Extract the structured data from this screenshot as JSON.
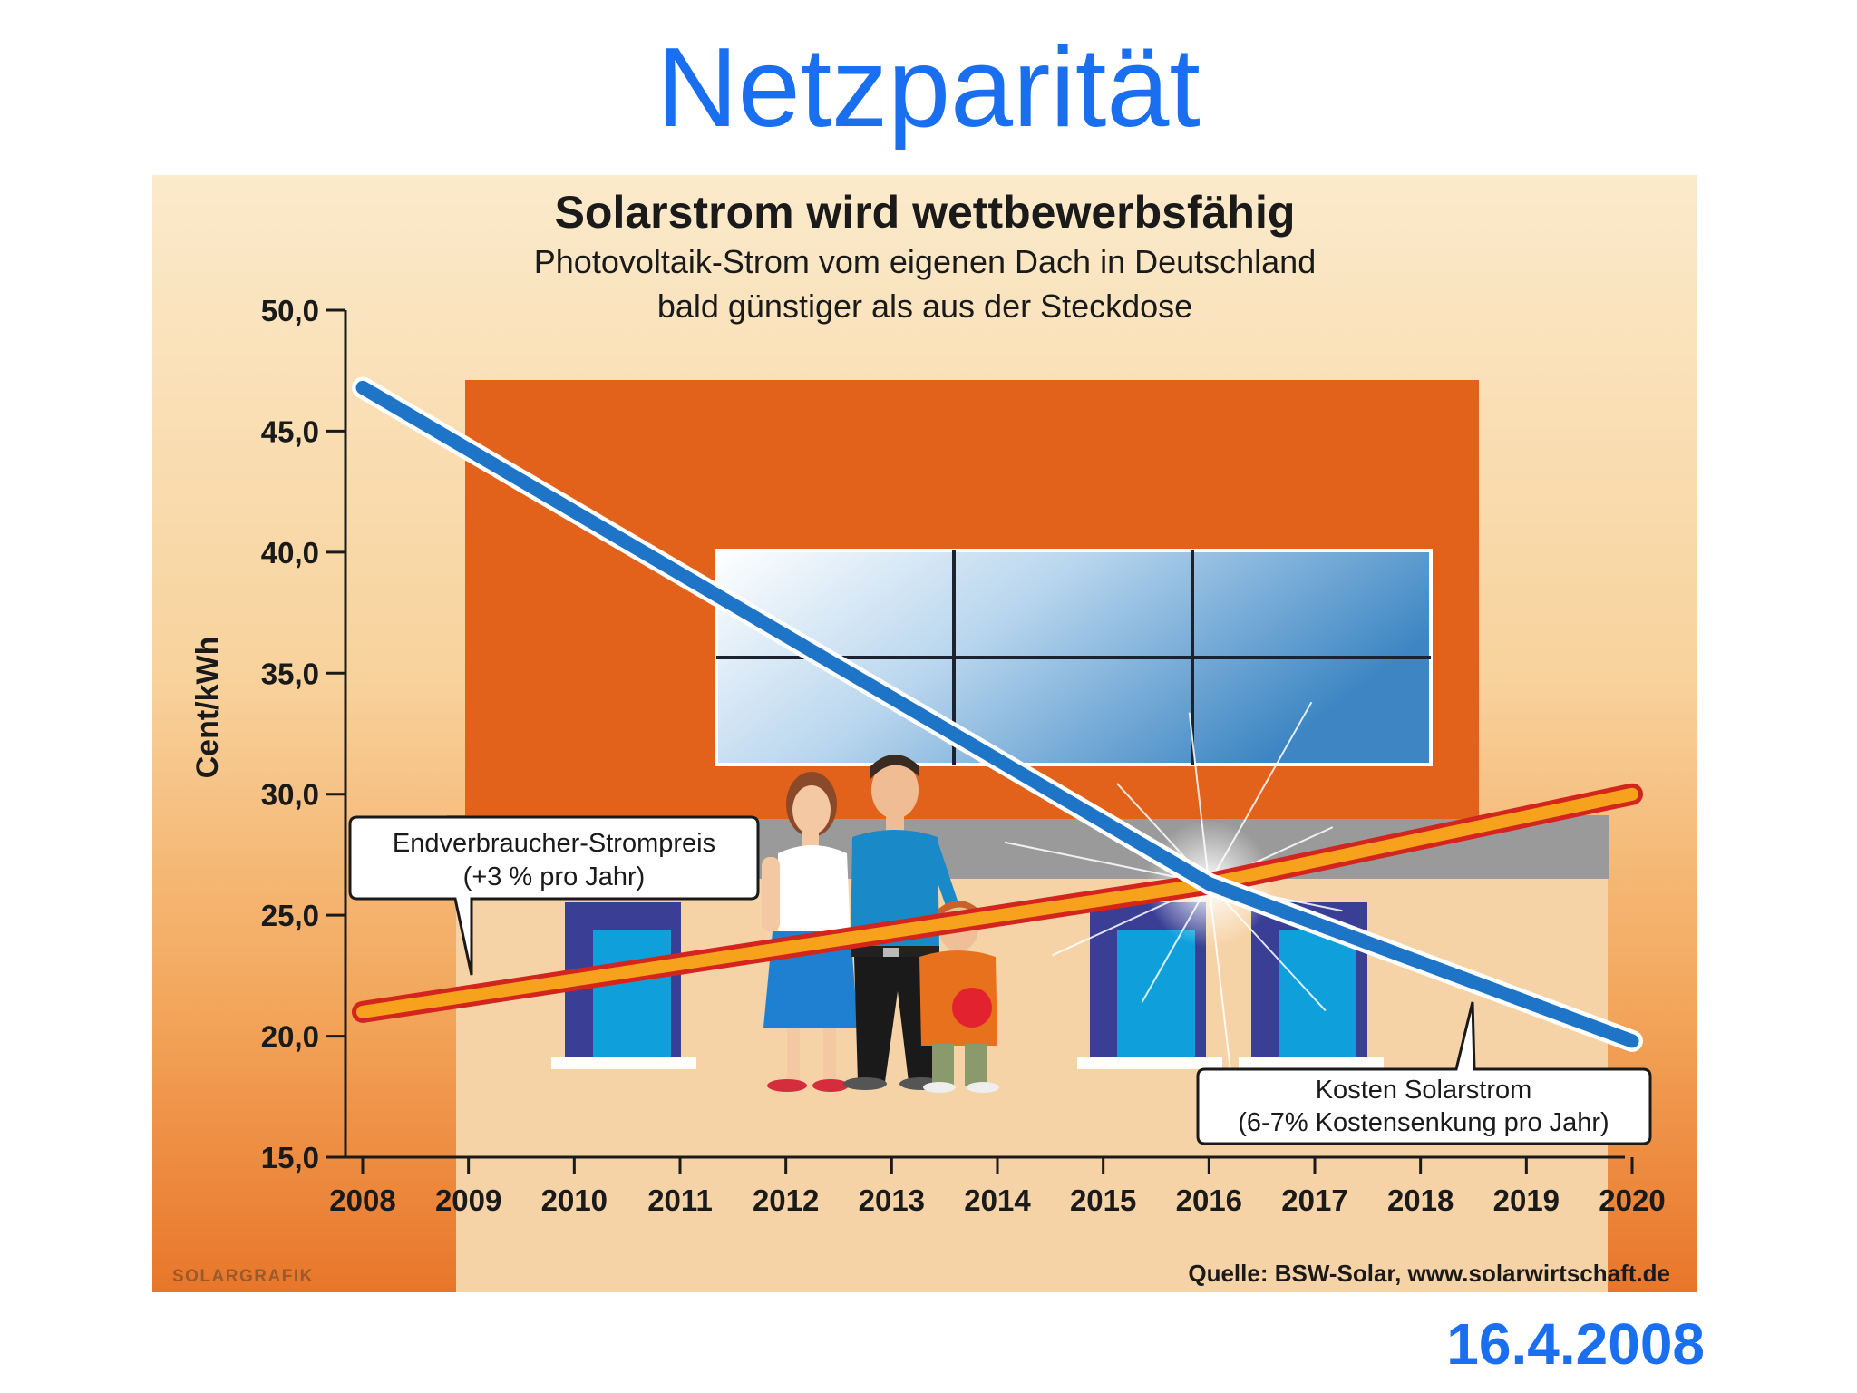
{
  "slide": {
    "title": "Netzparität",
    "date": "16.4.2008"
  },
  "graphic": {
    "brand": "SOLARGRAFIK",
    "source": "Quelle: BSW-Solar, www.solarwirtschaft.de"
  },
  "colors": {
    "slide_text": "#1a6ef0",
    "solar_line": "#1e74c6",
    "grid_line": "#f7a21c",
    "grid_line_outline": "#d3241d",
    "house_wall": "#e2611b",
    "background_top": "#fbe9c7",
    "background_bottom": "#ea7f2c"
  },
  "chart_data": {
    "type": "line",
    "title": "Solarstrom wird wettbewerbsfähig",
    "subtitle_line1": "Photovoltaik-Strom vom eigenen Dach in Deutschland",
    "subtitle_line2": "bald günstiger als aus der Steckdose",
    "xlabel": "",
    "ylabel": "Cent/kWh",
    "ylim": [
      15,
      50
    ],
    "x_ticks": [
      "2008",
      "2009",
      "2010",
      "2011",
      "2012",
      "2013",
      "2014",
      "2015",
      "2016",
      "2017",
      "2018",
      "2019",
      "2020"
    ],
    "y_ticks": [
      "15,0",
      "20,0",
      "25,0",
      "30,0",
      "35,0",
      "40,0",
      "45,0",
      "50,0"
    ],
    "y_tick_values": [
      15,
      20,
      25,
      30,
      35,
      40,
      45,
      50
    ],
    "series": [
      {
        "key": "solar",
        "x": [
          2008,
          2016,
          2020
        ],
        "y": [
          46.8,
          26.3,
          19.8
        ],
        "label_line1": "Kosten Solarstrom",
        "label_line2": "(6-7% Kostensenkung pro Jahr)"
      },
      {
        "key": "grid",
        "x": [
          2008,
          2016,
          2020
        ],
        "y": [
          21.0,
          26.3,
          30.0
        ],
        "label_line1": "Endverbraucher-Strompreis",
        "label_line2": "(+3 % pro Jahr)"
      }
    ],
    "grid": false,
    "legend": "callouts"
  }
}
